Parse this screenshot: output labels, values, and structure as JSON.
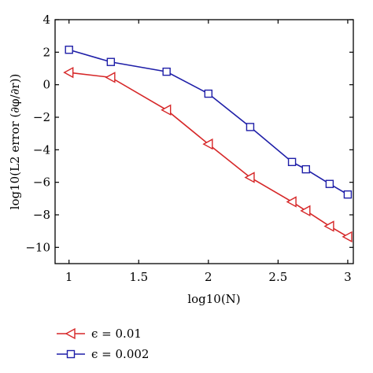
{
  "chart_data": {
    "type": "line",
    "title": "",
    "xlabel": "log10(N)",
    "ylabel": "log10(L2 error (∂φ/∂r))",
    "xlim": [
      0.9,
      3.04
    ],
    "ylim": [
      -11,
      4
    ],
    "xticks": [
      1,
      1.5,
      2,
      2.5,
      3
    ],
    "xtick_labels": [
      "1",
      "1.5",
      "2",
      "2.5",
      "3"
    ],
    "yticks": [
      4,
      2,
      0,
      -2,
      -4,
      -6,
      -8,
      -10
    ],
    "ytick_labels": [
      "4",
      "2",
      "0",
      "−2",
      "−4",
      "−6",
      "−8",
      "−10"
    ],
    "legend_position": "bottom-left, below plot",
    "series": [
      {
        "name": "ϵ = 0.01",
        "color": "#d62728",
        "marker": "triangle-left",
        "x": [
          1,
          1.3,
          1.7,
          2,
          2.3,
          2.6,
          2.7,
          2.87,
          3
        ],
        "y": [
          0.75,
          0.45,
          -1.55,
          -3.65,
          -5.7,
          -7.2,
          -7.75,
          -8.7,
          -9.35
        ]
      },
      {
        "name": "ϵ = 0.002",
        "color": "#1f1fa8",
        "marker": "square",
        "x": [
          1,
          1.3,
          1.7,
          2,
          2.3,
          2.6,
          2.7,
          2.87,
          3
        ],
        "y": [
          2.15,
          1.4,
          0.8,
          -0.55,
          -2.6,
          -4.75,
          -5.2,
          -6.1,
          -6.75
        ]
      }
    ]
  }
}
